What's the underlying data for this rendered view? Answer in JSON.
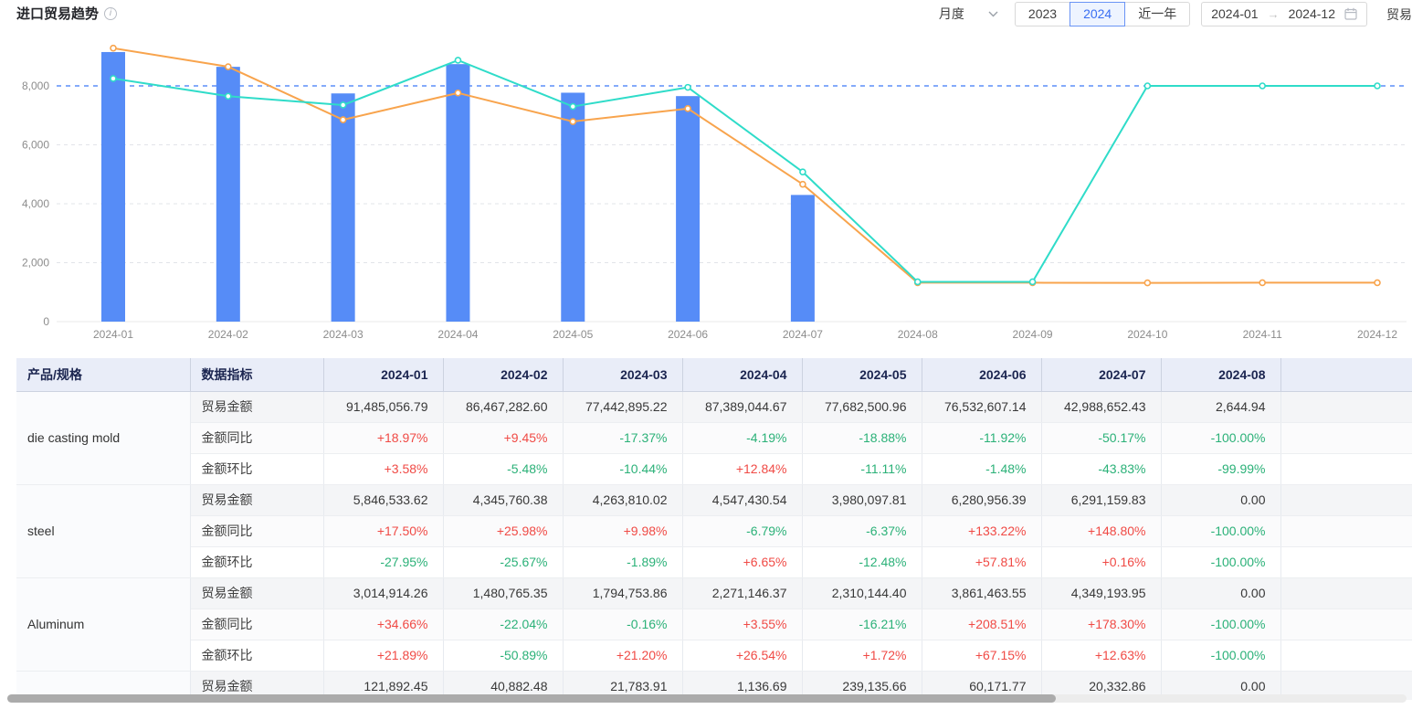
{
  "header": {
    "title": "进口贸易趋势",
    "controls": {
      "period_select_value": "月度",
      "year_buttons": [
        "2023",
        "2024"
      ],
      "active_year": "2024",
      "recent_year_label": "近一年",
      "date_start": "2024-01",
      "date_end": "2024-12",
      "partial_right_label": "贸易"
    }
  },
  "chart_data": {
    "type": "bar",
    "title": "进口贸易趋势",
    "categories": [
      "2024-01",
      "2024-02",
      "2024-03",
      "2024-04",
      "2024-05",
      "2024-06",
      "2024-07",
      "2024-08",
      "2024-09",
      "2024-10",
      "2024-11",
      "2024-12"
    ],
    "series": [
      {
        "name": "trade-amount-bar",
        "kind": "bar",
        "color": "#568cf7",
        "values": [
          9148.5,
          8646.7,
          7744.3,
          8738.9,
          7768.3,
          7653.3,
          4298.9,
          0.3,
          null,
          null,
          null,
          null
        ]
      },
      {
        "name": "orange-line",
        "kind": "line",
        "color": "#f8a44d",
        "values": [
          9280,
          8650,
          6850,
          7760,
          6790,
          7230,
          4660,
          1320,
          1320,
          1315,
          1320,
          1320
        ]
      },
      {
        "name": "teal-line",
        "kind": "line",
        "color": "#2fdcc9",
        "values": [
          8250,
          7650,
          7350,
          8870,
          7300,
          7950,
          5080,
          1350,
          1350,
          8000,
          8000,
          8000
        ]
      }
    ],
    "yticks": [
      0,
      2000,
      4000,
      6000,
      8000
    ],
    "ylim": [
      0,
      9600
    ],
    "xlabel": "",
    "ylabel": "",
    "grid": "horizontal-dashed",
    "legend": "none",
    "reference_line": {
      "value": 8000,
      "style": "dashed",
      "color": "#5b8ff9"
    },
    "bar_color": "#568cf7",
    "axis_label_color": "#8c8c8c"
  },
  "table": {
    "col_product": "产品/规格",
    "col_metric": "数据指标",
    "months": [
      "2024-01",
      "2024-02",
      "2024-03",
      "2024-04",
      "2024-05",
      "2024-06",
      "2024-07",
      "2024-08"
    ],
    "products": [
      {
        "name": "die casting mold",
        "rows": [
          {
            "metric": "贸易金额",
            "values": [
              "91,485,056.79",
              "86,467,282.60",
              "77,442,895.22",
              "87,389,044.67",
              "77,682,500.96",
              "76,532,607.14",
              "42,988,652.43",
              "2,644.94"
            ]
          },
          {
            "metric": "金额同比",
            "values": [
              "+18.97%",
              "+9.45%",
              "-17.37%",
              "-4.19%",
              "-18.88%",
              "-11.92%",
              "-50.17%",
              "-100.00%"
            ]
          },
          {
            "metric": "金额环比",
            "values": [
              "+3.58%",
              "-5.48%",
              "-10.44%",
              "+12.84%",
              "-11.11%",
              "-1.48%",
              "-43.83%",
              "-99.99%"
            ]
          }
        ]
      },
      {
        "name": "steel",
        "rows": [
          {
            "metric": "贸易金额",
            "values": [
              "5,846,533.62",
              "4,345,760.38",
              "4,263,810.02",
              "4,547,430.54",
              "3,980,097.81",
              "6,280,956.39",
              "6,291,159.83",
              "0.00"
            ]
          },
          {
            "metric": "金额同比",
            "values": [
              "+17.50%",
              "+25.98%",
              "+9.98%",
              "-6.79%",
              "-6.37%",
              "+133.22%",
              "+148.80%",
              "-100.00%"
            ]
          },
          {
            "metric": "金额环比",
            "values": [
              "-27.95%",
              "-25.67%",
              "-1.89%",
              "+6.65%",
              "-12.48%",
              "+57.81%",
              "+0.16%",
              "-100.00%"
            ]
          }
        ]
      },
      {
        "name": "Aluminum",
        "rows": [
          {
            "metric": "贸易金额",
            "values": [
              "3,014,914.26",
              "1,480,765.35",
              "1,794,753.86",
              "2,271,146.37",
              "2,310,144.40",
              "3,861,463.55",
              "4,349,193.95",
              "0.00"
            ]
          },
          {
            "metric": "金额同比",
            "values": [
              "+34.66%",
              "-22.04%",
              "-0.16%",
              "+3.55%",
              "-16.21%",
              "+208.51%",
              "+178.30%",
              "-100.00%"
            ]
          },
          {
            "metric": "金额环比",
            "values": [
              "+21.89%",
              "-50.89%",
              "+21.20%",
              "+26.54%",
              "+1.72%",
              "+67.15%",
              "+12.63%",
              "-100.00%"
            ]
          }
        ]
      },
      {
        "name": "",
        "rows": [
          {
            "metric": "贸易金额",
            "values": [
              "121,892.45",
              "40,882.48",
              "21,783.91",
              "1,136.69",
              "239,135.66",
              "60,171.77",
              "20,332.86",
              "0.00"
            ]
          }
        ]
      }
    ]
  }
}
